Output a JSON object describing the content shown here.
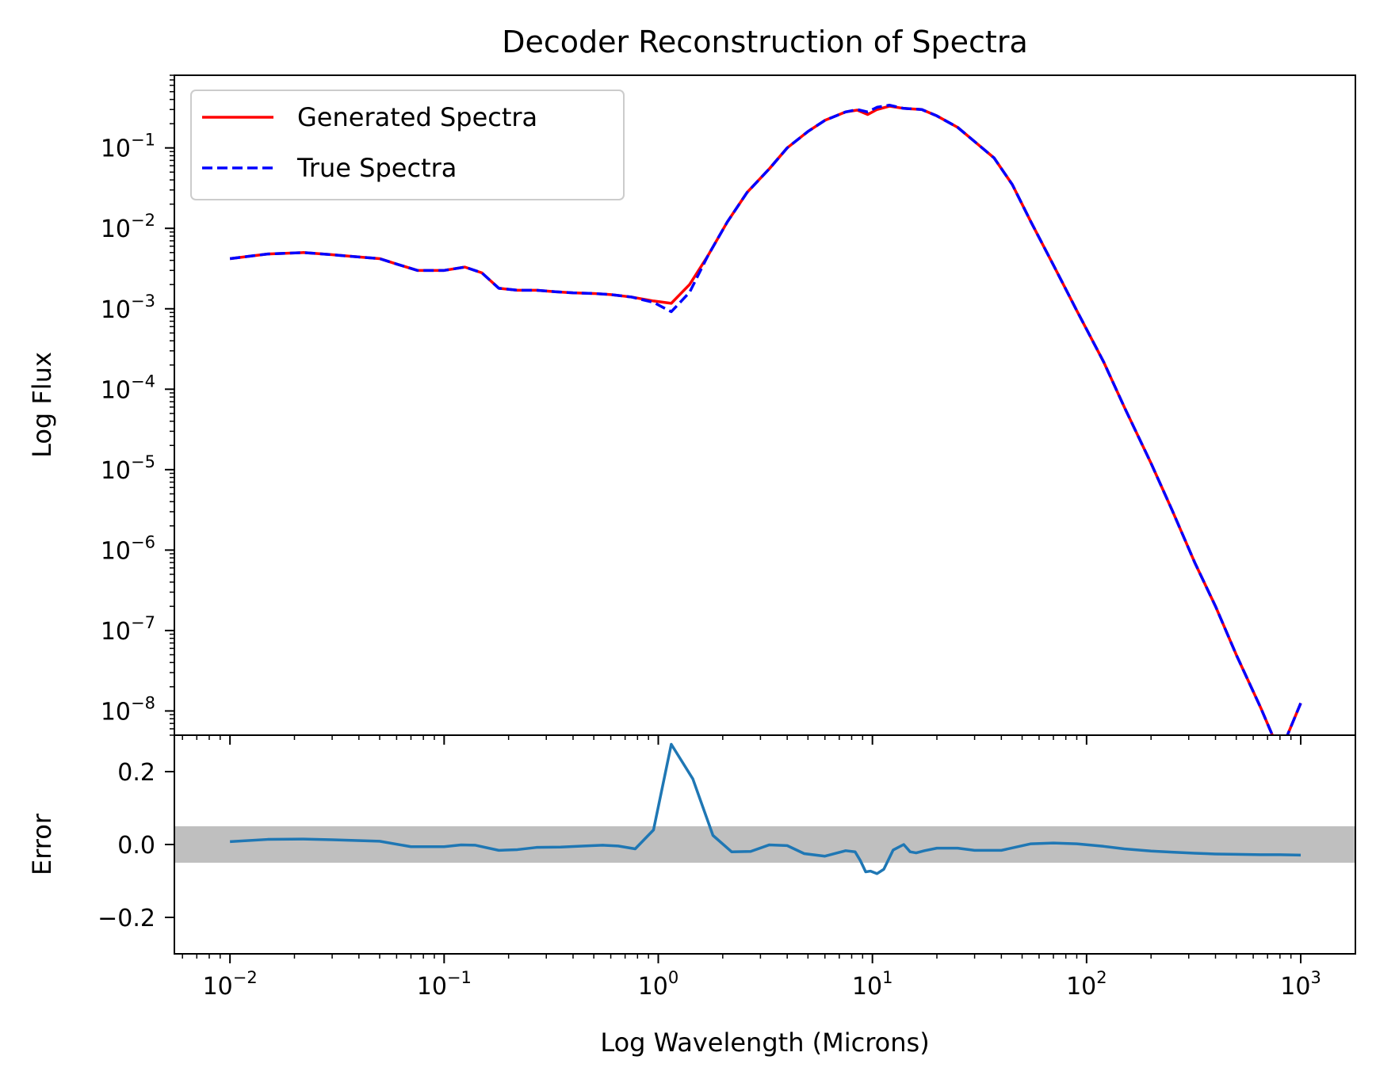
{
  "chart_data": [
    {
      "type": "line",
      "panel": "top",
      "title": "Decoder Reconstruction of Spectra",
      "xlabel": "",
      "ylabel": "Log Flux",
      "xscale": "log",
      "yscale": "log",
      "xlim": [
        0.0055,
        1800
      ],
      "ylim": [
        5e-09,
        0.8
      ],
      "grid": false,
      "legend_position": "top-left",
      "y_ticks": [
        {
          "value": 1e-08,
          "base": "10",
          "exp": "−8"
        },
        {
          "value": 1e-07,
          "base": "10",
          "exp": "−7"
        },
        {
          "value": 1e-06,
          "base": "10",
          "exp": "−6"
        },
        {
          "value": 1e-05,
          "base": "10",
          "exp": "−5"
        },
        {
          "value": 0.0001,
          "base": "10",
          "exp": "−4"
        },
        {
          "value": 0.001,
          "base": "10",
          "exp": "−3"
        },
        {
          "value": 0.01,
          "base": "10",
          "exp": "−2"
        },
        {
          "value": 0.1,
          "base": "10",
          "exp": "−1"
        }
      ],
      "series": [
        {
          "name": "Generated Spectra",
          "color": "#ff0000",
          "style": "solid",
          "x": [
            0.01,
            0.015,
            0.022,
            0.03,
            0.04,
            0.05,
            0.06,
            0.075,
            0.1,
            0.125,
            0.15,
            0.18,
            0.22,
            0.27,
            0.33,
            0.4,
            0.5,
            0.6,
            0.75,
            0.95,
            1.15,
            1.4,
            1.7,
            2.1,
            2.6,
            3.3,
            4,
            5,
            6,
            7.5,
            8.5,
            9.5,
            10.5,
            12,
            14,
            17,
            20,
            25,
            30,
            37,
            45,
            55,
            70,
            90,
            120,
            150,
            200,
            250,
            320,
            400,
            500,
            650,
            800,
            1000
          ],
          "y": [
            0.0042,
            0.0048,
            0.005,
            0.0047,
            0.0044,
            0.0042,
            0.0036,
            0.003,
            0.003,
            0.0033,
            0.0028,
            0.0018,
            0.0017,
            0.0017,
            0.00163,
            0.00158,
            0.00155,
            0.0015,
            0.0014,
            0.00125,
            0.00117,
            0.002,
            0.0045,
            0.012,
            0.028,
            0.055,
            0.1,
            0.16,
            0.22,
            0.28,
            0.295,
            0.26,
            0.3,
            0.33,
            0.31,
            0.3,
            0.25,
            0.18,
            0.12,
            0.075,
            0.035,
            0.012,
            0.0035,
            0.00095,
            0.00022,
            6e-05,
            1.2e-05,
            3.2e-06,
            7e-07,
            2e-07,
            5e-08,
            1.1e-08,
            3e-09,
            1.25e-08
          ]
        },
        {
          "name": "True Spectra",
          "color": "#0000ff",
          "style": "dashed",
          "x": [
            0.01,
            0.015,
            0.022,
            0.03,
            0.04,
            0.05,
            0.06,
            0.075,
            0.1,
            0.125,
            0.15,
            0.18,
            0.22,
            0.27,
            0.33,
            0.4,
            0.5,
            0.6,
            0.75,
            0.95,
            1.15,
            1.4,
            1.7,
            2.1,
            2.6,
            3.3,
            4,
            5,
            6,
            7.5,
            8.5,
            9.5,
            10.5,
            12,
            14,
            17,
            20,
            25,
            30,
            37,
            45,
            55,
            70,
            90,
            120,
            150,
            200,
            250,
            320,
            400,
            500,
            650,
            800,
            1000
          ],
          "y": [
            0.0042,
            0.0048,
            0.005,
            0.0047,
            0.0044,
            0.0042,
            0.0036,
            0.003,
            0.003,
            0.0033,
            0.0028,
            0.0018,
            0.0017,
            0.0017,
            0.00163,
            0.00158,
            0.00155,
            0.0015,
            0.0014,
            0.0012,
            0.00092,
            0.0016,
            0.0045,
            0.012,
            0.028,
            0.055,
            0.1,
            0.16,
            0.22,
            0.28,
            0.3,
            0.28,
            0.32,
            0.34,
            0.31,
            0.3,
            0.25,
            0.18,
            0.12,
            0.075,
            0.035,
            0.012,
            0.0035,
            0.00095,
            0.00022,
            6e-05,
            1.2e-05,
            3.2e-06,
            7e-07,
            2e-07,
            5e-08,
            1.1e-08,
            3e-09,
            1.25e-08
          ]
        }
      ]
    },
    {
      "type": "line",
      "panel": "bottom",
      "title": "",
      "xlabel": "Log Wavelength (Microns)",
      "ylabel": "Error",
      "xscale": "log",
      "yscale": "linear",
      "xlim": [
        0.0055,
        1800
      ],
      "ylim": [
        -0.3,
        0.3
      ],
      "grid": false,
      "band": {
        "y0": -0.05,
        "y1": 0.05,
        "color": "#bfbfbf"
      },
      "x_ticks": [
        {
          "value": 0.01,
          "base": "10",
          "exp": "−2"
        },
        {
          "value": 0.1,
          "base": "10",
          "exp": "−1"
        },
        {
          "value": 1,
          "base": "10",
          "exp": "0"
        },
        {
          "value": 10,
          "base": "10",
          "exp": "1"
        },
        {
          "value": 100,
          "base": "10",
          "exp": "2"
        },
        {
          "value": 1000,
          "base": "10",
          "exp": "3"
        }
      ],
      "y_ticks": [
        {
          "value": 0.2,
          "label": "0.2"
        },
        {
          "value": 0.0,
          "label": "0.0"
        },
        {
          "value": -0.2,
          "label": "−0.2"
        }
      ],
      "series": [
        {
          "color": "#1f77b4",
          "style": "solid",
          "x": [
            0.01,
            0.015,
            0.022,
            0.03,
            0.05,
            0.07,
            0.1,
            0.12,
            0.14,
            0.18,
            0.22,
            0.27,
            0.35,
            0.45,
            0.55,
            0.65,
            0.78,
            0.95,
            1.15,
            1.45,
            1.8,
            2.2,
            2.7,
            3.3,
            4,
            4.8,
            6,
            7.5,
            8.3,
            8.8,
            9.3,
            9.8,
            10.5,
            11.3,
            12.5,
            14,
            15,
            16,
            17.5,
            20,
            25,
            30,
            40,
            55,
            70,
            90,
            120,
            150,
            200,
            250,
            320,
            400,
            500,
            650,
            800,
            1000
          ],
          "y": [
            0.008,
            0.014,
            0.015,
            0.013,
            0.009,
            -0.006,
            -0.006,
            -0.001,
            -0.002,
            -0.016,
            -0.014,
            -0.008,
            -0.007,
            -0.004,
            -0.002,
            -0.004,
            -0.012,
            0.04,
            0.275,
            0.18,
            0.025,
            -0.02,
            -0.019,
            -0.001,
            -0.003,
            -0.025,
            -0.032,
            -0.017,
            -0.02,
            -0.045,
            -0.075,
            -0.073,
            -0.08,
            -0.068,
            -0.015,
            0.0,
            -0.02,
            -0.023,
            -0.017,
            -0.01,
            -0.01,
            -0.016,
            -0.016,
            0.002,
            0.004,
            0.002,
            -0.005,
            -0.012,
            -0.018,
            -0.021,
            -0.024,
            -0.026,
            -0.027,
            -0.028,
            -0.028,
            -0.029
          ]
        }
      ]
    }
  ]
}
